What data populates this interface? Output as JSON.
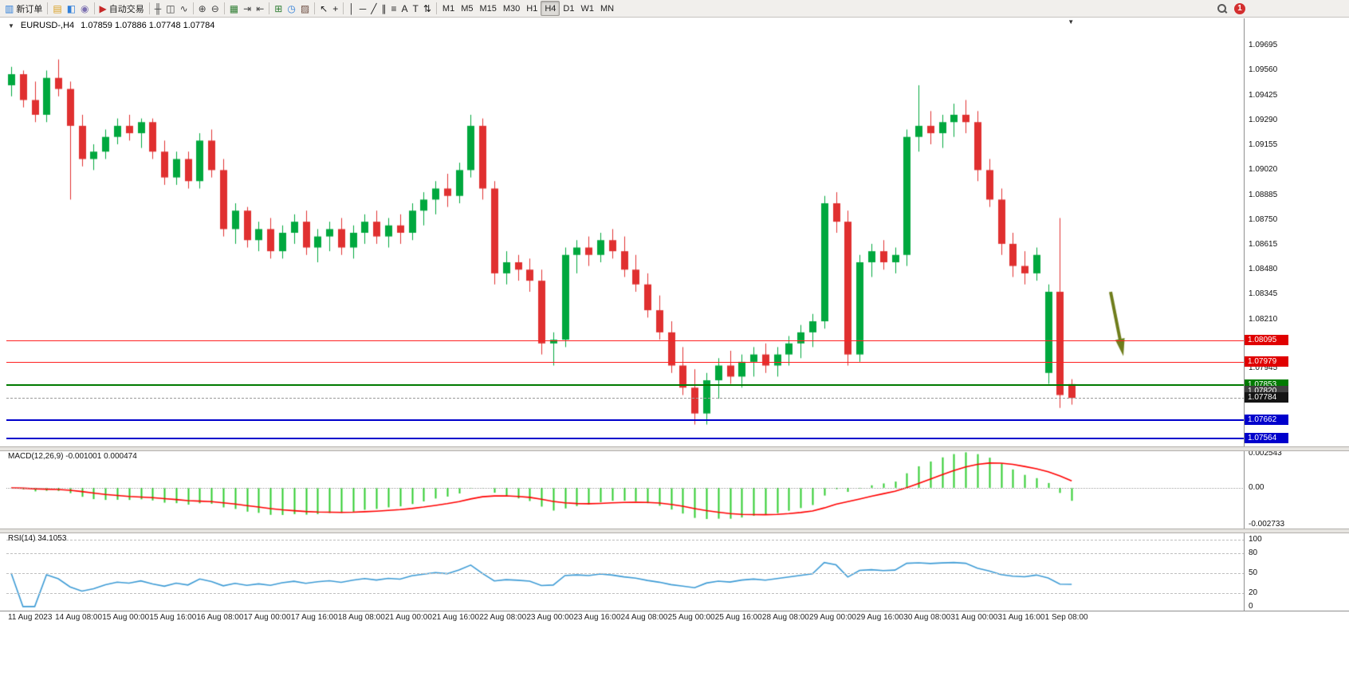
{
  "colors": {
    "up": "#00a83e",
    "down": "#e03030",
    "macd_hist": "#2fcc2f",
    "macd_signal": "#ff0000",
    "rsi_line": "#3d9bd5",
    "level_red": "#ff2020",
    "level_green": "#007a00",
    "level_blue": "#0000cc",
    "arrow": "#6f7d1c"
  },
  "icons": {
    "collapse": "▼",
    "shift_marker": "▼"
  },
  "toolbar": {
    "groups": [
      [
        {
          "name": "new-order-button",
          "icon": "new-order-icon",
          "glyph": "▥",
          "glyph_color": "#2f7ed8",
          "label": "新订单"
        }
      ],
      [
        {
          "name": "market-watch-button",
          "icon": "market-watch-icon",
          "glyph": "▤",
          "glyph_color": "#d99f1f"
        },
        {
          "name": "data-window-button",
          "icon": "data-window-icon",
          "glyph": "◧",
          "glyph_color": "#2f7ed8"
        },
        {
          "name": "navigator-button",
          "icon": "navigator-icon",
          "glyph": "◉",
          "glyph_color": "#7b6fb0"
        }
      ],
      [
        {
          "name": "auto-trading-button",
          "icon": "play-icon",
          "glyph": "▶",
          "glyph_color": "#c62828",
          "label": "自动交易"
        }
      ],
      [
        {
          "name": "bar-chart-button",
          "icon": "bar-chart-icon",
          "glyph": "╫",
          "glyph_color": "#444"
        },
        {
          "name": "candlestick-chart-button",
          "icon": "candlestick-icon",
          "glyph": "◫",
          "glyph_color": "#444"
        },
        {
          "name": "line-chart-button",
          "icon": "line-chart-icon",
          "glyph": "∿",
          "glyph_color": "#444"
        }
      ],
      [
        {
          "name": "zoom-in-button",
          "icon": "zoom-in-icon",
          "glyph": "⊕",
          "glyph_color": "#444"
        },
        {
          "name": "zoom-out-button",
          "icon": "zoom-out-icon",
          "glyph": "⊖",
          "glyph_color": "#444"
        }
      ],
      [
        {
          "name": "tile-windows-button",
          "icon": "tile-windows-icon",
          "glyph": "▦",
          "glyph_color": "#2e7d32"
        },
        {
          "name": "auto-scroll-button",
          "icon": "auto-scroll-icon",
          "glyph": "⇥",
          "glyph_color": "#444"
        },
        {
          "name": "chart-shift-button",
          "icon": "chart-shift-icon",
          "glyph": "⇤",
          "glyph_color": "#444"
        }
      ],
      [
        {
          "name": "indicators-button",
          "icon": "indicators-icon",
          "glyph": "⊞",
          "glyph_color": "#2e7d32"
        },
        {
          "name": "periods-button",
          "icon": "clock-icon",
          "glyph": "◷",
          "glyph_color": "#2f7ed8"
        },
        {
          "name": "templates-button",
          "icon": "templates-icon",
          "glyph": "▨",
          "glyph_color": "#6d4c41"
        }
      ],
      [
        {
          "name": "cursor-button",
          "icon": "cursor-icon",
          "glyph": "↖",
          "glyph_color": "#222"
        },
        {
          "name": "crosshair-button",
          "icon": "crosshair-icon",
          "glyph": "+",
          "glyph_color": "#222"
        }
      ],
      [
        {
          "name": "vertical-line-button",
          "icon": "vertical-line-icon",
          "glyph": "│",
          "glyph_color": "#222"
        },
        {
          "name": "horizontal-line-button",
          "icon": "horizontal-line-icon",
          "glyph": "─",
          "glyph_color": "#222"
        },
        {
          "name": "trendline-button",
          "icon": "trendline-icon",
          "glyph": "╱",
          "glyph_color": "#222"
        },
        {
          "name": "channel-button",
          "icon": "channel-icon",
          "glyph": "∥",
          "glyph_color": "#222"
        },
        {
          "name": "fibonacci-button",
          "icon": "fibonacci-icon",
          "glyph": "≡",
          "glyph_color": "#222"
        },
        {
          "name": "text-button",
          "icon": "text-icon",
          "glyph": "A",
          "glyph_color": "#222"
        },
        {
          "name": "text-label-button",
          "icon": "text-label-icon",
          "glyph": "T",
          "glyph_color": "#222"
        },
        {
          "name": "arrows-button",
          "icon": "arrows-icon",
          "glyph": "⇅",
          "glyph_color": "#222"
        }
      ]
    ],
    "timeframes": {
      "items": [
        "M1",
        "M5",
        "M15",
        "M30",
        "H1",
        "H4",
        "D1",
        "W1",
        "MN"
      ],
      "active": "H4"
    },
    "notification": {
      "count": "1"
    }
  },
  "chart": {
    "symbol_title": "EURUSD-,H4",
    "ohlc": "1.07859 1.07886 1.07748 1.07784"
  },
  "indicators": {
    "macd_label": "MACD(12,26,9) -0.001001 0.000474",
    "rsi_label": "RSI(14) 34.1053"
  },
  "price_axis": {
    "ticks": [
      {
        "label": "1.09695",
        "price": 1.09695
      },
      {
        "label": "1.09560",
        "price": 1.0956
      },
      {
        "label": "1.09425",
        "price": 1.09425
      },
      {
        "label": "1.09290",
        "price": 1.0929
      },
      {
        "label": "1.09155",
        "price": 1.09155
      },
      {
        "label": "1.09020",
        "price": 1.0902
      },
      {
        "label": "1.08885",
        "price": 1.08885
      },
      {
        "label": "1.08750",
        "price": 1.0875
      },
      {
        "label": "1.08615",
        "price": 1.08615
      },
      {
        "label": "1.08480",
        "price": 1.0848
      },
      {
        "label": "1.08345",
        "price": 1.08345
      },
      {
        "label": "1.08210",
        "price": 1.0821
      },
      {
        "label": "1.07945",
        "price": 1.07945
      }
    ],
    "badges": [
      {
        "label": "1.08095",
        "price": 1.08095,
        "bg": "#e00000"
      },
      {
        "label": "1.07979",
        "price": 1.07979,
        "bg": "#e00000"
      },
      {
        "label": "1.07853",
        "price": 1.07853,
        "bg": "#007a00"
      },
      {
        "label": "1.07820",
        "price": 1.0782,
        "bg": "#404040"
      },
      {
        "label": "1.07784",
        "price": 1.07784,
        "bg": "#141414"
      },
      {
        "label": "1.07662",
        "price": 1.07662,
        "bg": "#0000cc"
      },
      {
        "label": "1.07564",
        "price": 1.07564,
        "bg": "#0000cc"
      }
    ]
  },
  "levels": [
    {
      "name": "resistance-1",
      "price": 1.08095,
      "color": "#ff2020",
      "style": "solid",
      "weight": 1
    },
    {
      "name": "resistance-2",
      "price": 1.07979,
      "color": "#ff2020",
      "style": "solid",
      "weight": 1
    },
    {
      "name": "support-1",
      "price": 1.07853,
      "color": "#007a00",
      "style": "solid",
      "weight": 2
    },
    {
      "name": "bid-line",
      "price": 1.07784,
      "color": "#9a9a9a",
      "style": "dashed",
      "weight": 1
    },
    {
      "name": "support-2",
      "price": 1.07662,
      "color": "#0000cc",
      "style": "solid",
      "weight": 2
    },
    {
      "name": "support-3",
      "price": 1.07564,
      "color": "#0000cc",
      "style": "solid",
      "weight": 2
    }
  ],
  "annotations": [
    {
      "type": "down-arrow",
      "color": "#6f7d1c",
      "bar_from": 93.3,
      "price_from": 1.0836,
      "bar_to": 94.2,
      "price_to": 1.0807
    }
  ],
  "chart_data": {
    "type": "candlestick",
    "symbol": "EURUSD-",
    "timeframe": "H4",
    "ylim": [
      1.07517,
      1.09843
    ],
    "bars_per_label": 4,
    "x_labels": [
      "11 Aug 2023",
      "14 Aug 08:00",
      "15 Aug 00:00",
      "15 Aug 16:00",
      "16 Aug 08:00",
      "17 Aug 00:00",
      "17 Aug 16:00",
      "18 Aug 08:00",
      "21 Aug 00:00",
      "21 Aug 16:00",
      "22 Aug 08:00",
      "23 Aug 00:00",
      "23 Aug 16:00",
      "24 Aug 08:00",
      "25 Aug 00:00",
      "25 Aug 16:00",
      "28 Aug 08:00",
      "29 Aug 00:00",
      "29 Aug 16:00",
      "30 Aug 08:00",
      "31 Aug 00:00",
      "31 Aug 16:00",
      "1 Sep 08:00"
    ],
    "candles": [
      [
        1.0948,
        1.0958,
        1.0942,
        1.0954
      ],
      [
        1.0954,
        1.0956,
        1.0936,
        1.094
      ],
      [
        1.094,
        1.095,
        1.0928,
        1.0932
      ],
      [
        1.0932,
        1.0956,
        1.0928,
        1.0952
      ],
      [
        1.0952,
        1.0962,
        1.0942,
        1.0946
      ],
      [
        1.0946,
        1.095,
        1.0886,
        1.0926
      ],
      [
        1.0926,
        1.0932,
        1.0904,
        1.0908
      ],
      [
        1.0908,
        1.0916,
        1.0902,
        1.0912
      ],
      [
        1.0912,
        1.0924,
        1.0908,
        1.092
      ],
      [
        1.092,
        1.093,
        1.0916,
        1.0926
      ],
      [
        1.0926,
        1.0932,
        1.0918,
        1.0922
      ],
      [
        1.0922,
        1.093,
        1.0914,
        1.0928
      ],
      [
        1.0928,
        1.093,
        1.0908,
        1.0912
      ],
      [
        1.0912,
        1.0918,
        1.0894,
        1.0898
      ],
      [
        1.0898,
        1.0912,
        1.0894,
        1.0908
      ],
      [
        1.0908,
        1.0912,
        1.0892,
        1.0896
      ],
      [
        1.0896,
        1.0922,
        1.0892,
        1.0918
      ],
      [
        1.0918,
        1.0924,
        1.0898,
        1.0902
      ],
      [
        1.0902,
        1.0908,
        1.0866,
        1.087
      ],
      [
        1.087,
        1.0884,
        1.0862,
        1.088
      ],
      [
        1.088,
        1.0882,
        1.086,
        1.0864
      ],
      [
        1.0864,
        1.0874,
        1.0858,
        1.087
      ],
      [
        1.087,
        1.0876,
        1.0854,
        1.0858
      ],
      [
        1.0858,
        1.0872,
        1.0854,
        1.0868
      ],
      [
        1.0868,
        1.0878,
        1.0862,
        1.0874
      ],
      [
        1.0874,
        1.088,
        1.0856,
        1.086
      ],
      [
        1.086,
        1.087,
        1.0852,
        1.0866
      ],
      [
        1.0866,
        1.0874,
        1.0858,
        1.087
      ],
      [
        1.087,
        1.0876,
        1.0856,
        1.086
      ],
      [
        1.086,
        1.0872,
        1.0854,
        1.0868
      ],
      [
        1.0868,
        1.0878,
        1.0862,
        1.0874
      ],
      [
        1.0874,
        1.088,
        1.0862,
        1.0866
      ],
      [
        1.0866,
        1.0876,
        1.086,
        1.0872
      ],
      [
        1.0872,
        1.0878,
        1.0862,
        1.0868
      ],
      [
        1.0868,
        1.0884,
        1.0864,
        1.088
      ],
      [
        1.088,
        1.089,
        1.0872,
        1.0886
      ],
      [
        1.0886,
        1.0896,
        1.0878,
        1.0892
      ],
      [
        1.0892,
        1.09,
        1.0882,
        1.0888
      ],
      [
        1.0888,
        1.0906,
        1.0884,
        1.0902
      ],
      [
        1.0902,
        1.0932,
        1.0898,
        1.0926
      ],
      [
        1.0926,
        1.093,
        1.0886,
        1.0892
      ],
      [
        1.0892,
        1.0896,
        1.084,
        1.0846
      ],
      [
        1.0846,
        1.0858,
        1.084,
        1.0852
      ],
      [
        1.0852,
        1.0856,
        1.0842,
        1.0848
      ],
      [
        1.0848,
        1.0854,
        1.0836,
        1.0842
      ],
      [
        1.0842,
        1.0848,
        1.0802,
        1.0808
      ],
      [
        1.0808,
        1.0814,
        1.0796,
        1.081
      ],
      [
        1.081,
        1.086,
        1.0806,
        1.0856
      ],
      [
        1.0856,
        1.0864,
        1.0846,
        1.086
      ],
      [
        1.086,
        1.0866,
        1.085,
        1.0856
      ],
      [
        1.0856,
        1.0868,
        1.0852,
        1.0864
      ],
      [
        1.0864,
        1.087,
        1.0854,
        1.0858
      ],
      [
        1.0858,
        1.0866,
        1.0844,
        1.0848
      ],
      [
        1.0848,
        1.0856,
        1.0836,
        1.084
      ],
      [
        1.084,
        1.0846,
        1.0822,
        1.0826
      ],
      [
        1.0826,
        1.0834,
        1.081,
        1.0814
      ],
      [
        1.0814,
        1.082,
        1.0792,
        1.0796
      ],
      [
        1.0796,
        1.0806,
        1.078,
        1.0784
      ],
      [
        1.0784,
        1.0794,
        1.0764,
        1.077
      ],
      [
        1.077,
        1.0792,
        1.0764,
        1.0788
      ],
      [
        1.0788,
        1.08,
        1.0778,
        1.0796
      ],
      [
        1.0796,
        1.0804,
        1.0786,
        1.079
      ],
      [
        1.079,
        1.0802,
        1.0784,
        1.0798
      ],
      [
        1.0798,
        1.0806,
        1.079,
        1.0802
      ],
      [
        1.0802,
        1.0808,
        1.0792,
        1.0796
      ],
      [
        1.0796,
        1.0806,
        1.079,
        1.0802
      ],
      [
        1.0802,
        1.0812,
        1.0796,
        1.0808
      ],
      [
        1.0808,
        1.0818,
        1.08,
        1.0814
      ],
      [
        1.0814,
        1.0824,
        1.0806,
        1.082
      ],
      [
        1.082,
        1.0888,
        1.0816,
        1.0884
      ],
      [
        1.0884,
        1.089,
        1.0868,
        1.0874
      ],
      [
        1.0874,
        1.088,
        1.0796,
        1.0802
      ],
      [
        1.0802,
        1.0856,
        1.0798,
        1.0852
      ],
      [
        1.0852,
        1.0862,
        1.0844,
        1.0858
      ],
      [
        1.0858,
        1.0864,
        1.0848,
        1.0852
      ],
      [
        1.0852,
        1.086,
        1.0846,
        1.0856
      ],
      [
        1.0856,
        1.0924,
        1.085,
        1.092
      ],
      [
        1.092,
        1.0948,
        1.0912,
        1.0926
      ],
      [
        1.0926,
        1.0934,
        1.0916,
        1.0922
      ],
      [
        1.0922,
        1.0932,
        1.0914,
        1.0928
      ],
      [
        1.0928,
        1.0938,
        1.092,
        1.0932
      ],
      [
        1.0932,
        1.094,
        1.0922,
        1.0928
      ],
      [
        1.0928,
        1.0934,
        1.0896,
        1.0902
      ],
      [
        1.0902,
        1.0908,
        1.0882,
        1.0886
      ],
      [
        1.0886,
        1.0892,
        1.0856,
        1.0862
      ],
      [
        1.0862,
        1.0868,
        1.0844,
        1.085
      ],
      [
        1.085,
        1.0858,
        1.084,
        1.0846
      ],
      [
        1.0846,
        1.086,
        1.0842,
        1.0856
      ],
      [
        1.0792,
        1.084,
        1.0786,
        1.0836
      ],
      [
        1.0836,
        1.0876,
        1.0773,
        1.078
      ],
      [
        1.07859,
        1.07886,
        1.07748,
        1.07784
      ]
    ],
    "indicators": [
      {
        "type": "bar",
        "name": "MACD",
        "params": [
          12,
          26,
          9
        ],
        "current_values": "-0.001001 0.000474",
        "ylim": [
          -0.003,
          0.0027
        ],
        "axis_labels": [
          {
            "label": "0.002543",
            "value": 0.002543
          },
          {
            "label": "0.00",
            "value": 0
          },
          {
            "label": "-0.002733",
            "value": -0.002733
          }
        ]
      },
      {
        "type": "line",
        "name": "RSI",
        "params": [
          14
        ],
        "current_value": "34.1053",
        "ylim": [
          0,
          100
        ],
        "levels": [
          100,
          80,
          50,
          20
        ],
        "axis_labels": [
          {
            "label": "100",
            "value": 100
          },
          {
            "label": "80",
            "value": 80
          },
          {
            "label": "50",
            "value": 50
          },
          {
            "label": "20",
            "value": 20
          },
          {
            "label": "0",
            "value": 0
          }
        ]
      }
    ]
  }
}
